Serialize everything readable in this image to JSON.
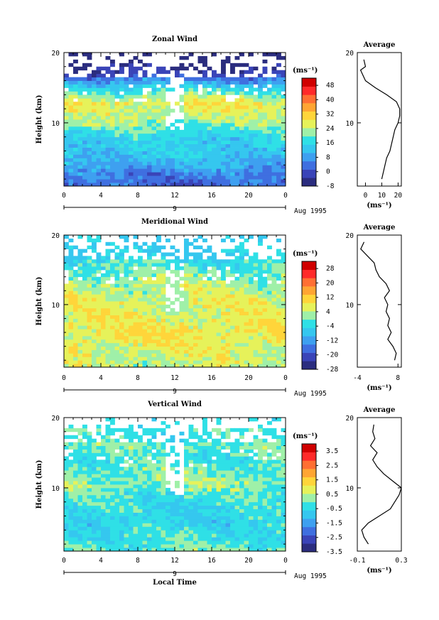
{
  "figure": {
    "x_axis_label": "Local Time",
    "date_label": "Aug 1995",
    "day_marker": "9",
    "colors": {
      "scale": [
        "#2b2d7f",
        "#3a44b8",
        "#3f6fe0",
        "#3ea0f0",
        "#35c7ef",
        "#2fe0e6",
        "#9ff0a8",
        "#e6f25a",
        "#ffd53a",
        "#ffa533",
        "#ff6f33",
        "#ff2a2a",
        "#d00000"
      ]
    }
  },
  "chart_data": [
    {
      "type": "heatmap",
      "title": "Zonal Wind",
      "xlabel": "",
      "ylabel": "Height (km)",
      "x_ticks": [
        "0",
        "4",
        "8",
        "12",
        "16",
        "20",
        "0"
      ],
      "y_ticks": [
        "20",
        "10"
      ],
      "xlim": [
        0,
        24
      ],
      "ylim": [
        1,
        20
      ],
      "colorbar": {
        "unit": "(ms⁻¹)",
        "ticks": [
          "48",
          "40",
          "32",
          "24",
          "16",
          "8",
          "0",
          "-8"
        ],
        "range": [
          -8,
          52
        ]
      },
      "field": {
        "min": -8,
        "max": 52,
        "profile_heights_km": [
          1,
          3,
          5,
          7,
          9,
          10,
          11,
          12,
          13,
          14,
          15,
          16,
          17,
          18,
          19
        ],
        "profile_values": [
          2,
          6,
          12,
          14,
          18,
          22,
          24,
          26,
          28,
          22,
          16,
          8,
          0,
          -4,
          -4
        ]
      },
      "average_profile": {
        "title": "Average",
        "xlabel": "(ms⁻¹)",
        "x_ticks": [
          "0",
          "10",
          "20"
        ],
        "xlim": [
          -5,
          22
        ],
        "y_ticks": [
          "20",
          "10"
        ],
        "heights_km": [
          2,
          3,
          4,
          5,
          6,
          7,
          8,
          9,
          10,
          11,
          12,
          13,
          14,
          15,
          16,
          17,
          17.5,
          18,
          19
        ],
        "values": [
          10,
          11,
          12,
          13,
          15,
          16,
          17,
          18,
          20,
          21,
          21,
          19,
          13,
          6,
          0,
          -2,
          -3,
          0,
          -1
        ]
      }
    },
    {
      "type": "heatmap",
      "title": "Meridional Wind",
      "xlabel": "",
      "ylabel": "Height (km)",
      "x_ticks": [
        "0",
        "4",
        "8",
        "12",
        "16",
        "20",
        "0"
      ],
      "y_ticks": [
        "20",
        "10"
      ],
      "xlim": [
        0,
        24
      ],
      "ylim": [
        1,
        20
      ],
      "colorbar": {
        "unit": "(ms⁻¹)",
        "ticks": [
          "28",
          "20",
          "12",
          "4",
          "-4",
          "-12",
          "-20",
          "-28"
        ],
        "range": [
          -28,
          32
        ]
      },
      "field": {
        "min": -28,
        "max": 32,
        "profile_heights_km": [
          1,
          3,
          5,
          7,
          9,
          10,
          11,
          12,
          13,
          14,
          15,
          16,
          17,
          18,
          19
        ],
        "profile_values": [
          4,
          6,
          8,
          8,
          6,
          6,
          6,
          4,
          4,
          2,
          0,
          -2,
          -4,
          -4,
          -4
        ]
      },
      "average_profile": {
        "title": "Average",
        "xlabel": "(ms⁻¹)",
        "x_ticks": [
          "-4",
          "8"
        ],
        "xlim": [
          -4,
          9
        ],
        "y_ticks": [
          "20",
          "10"
        ],
        "heights_km": [
          2,
          3,
          4,
          5,
          6,
          7,
          8,
          9,
          10,
          11,
          12,
          13,
          14,
          15,
          16,
          17,
          18,
          19
        ],
        "values": [
          7,
          7.5,
          6.5,
          5,
          6,
          5,
          5.5,
          4.5,
          5,
          4,
          5.5,
          4.5,
          2.5,
          1.5,
          1,
          -1,
          -3,
          -2
        ]
      }
    },
    {
      "type": "heatmap",
      "title": "Vertical Wind",
      "xlabel": "Local Time",
      "ylabel": "Height (km)",
      "x_ticks": [
        "0",
        "4",
        "8",
        "12",
        "16",
        "20",
        "0"
      ],
      "y_ticks": [
        "20",
        "10"
      ],
      "xlim": [
        0,
        24
      ],
      "ylim": [
        1,
        20
      ],
      "colorbar": {
        "unit": "(ms⁻¹)",
        "ticks": [
          "3.5",
          "2.5",
          "1.5",
          "0.5",
          "-0.5",
          "-1.5",
          "-2.5",
          "-3.5"
        ],
        "range": [
          -3.5,
          4
        ]
      },
      "field": {
        "min": -3.5,
        "max": 4,
        "profile_heights_km": [
          1,
          3,
          5,
          7,
          9,
          10,
          11,
          12,
          13,
          14,
          15,
          16,
          17,
          18,
          19
        ],
        "profile_values": [
          0,
          -0.3,
          -0.6,
          -0.5,
          -0.2,
          0.2,
          0.3,
          0.1,
          0,
          -0.2,
          -0.1,
          0,
          -0.2,
          0,
          0
        ]
      },
      "average_profile": {
        "title": "Average",
        "xlabel": "(ms⁻¹)",
        "x_ticks": [
          "-0.1",
          "0.3"
        ],
        "xlim": [
          -0.1,
          0.3
        ],
        "y_ticks": [
          "20",
          "10"
        ],
        "heights_km": [
          2,
          3,
          4,
          5,
          6,
          7,
          8,
          9,
          10,
          11,
          12,
          13,
          14,
          15,
          16,
          17,
          18,
          19
        ],
        "values": [
          0.0,
          -0.04,
          -0.06,
          0.0,
          0.1,
          0.2,
          0.24,
          0.28,
          0.3,
          0.22,
          0.14,
          0.08,
          0.04,
          0.08,
          0.02,
          0.06,
          0.04,
          0.05
        ]
      }
    }
  ]
}
